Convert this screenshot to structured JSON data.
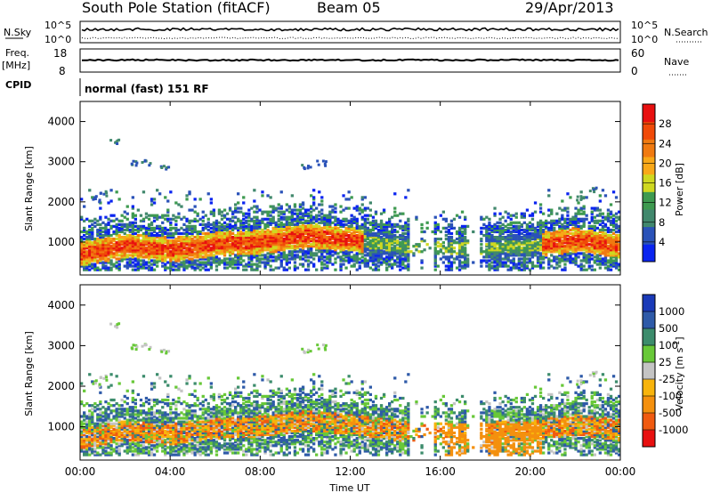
{
  "header": {
    "station": "South Pole Station (fitACF)",
    "beam": "Beam 05",
    "date": "29/Apr/2013"
  },
  "sky_panel": {
    "left_label": "N.Sky",
    "left_ticks": [
      "10^5",
      "10^0"
    ],
    "right_ticks": [
      "10^5",
      "10^0"
    ],
    "right_label": "N.Search"
  },
  "freq_panel": {
    "left_label_line1": "Freq.",
    "left_label_line2": "[MHz]",
    "left_ticks": [
      "18",
      "8"
    ],
    "right_ticks": [
      "60",
      "0"
    ],
    "right_label": "Nave"
  },
  "cpid_panel": {
    "label": "CPID",
    "mode_text": "normal (fast) 151 RF"
  },
  "x_axis": {
    "label": "Time UT",
    "ticks": [
      "00:00",
      "04:00",
      "08:00",
      "12:00",
      "16:00",
      "20:00",
      "00:00"
    ]
  },
  "colors": {
    "power": [
      "#0a24f0",
      "#2a52b8",
      "#41886d",
      "#3e9a50",
      "#cfd820",
      "#f8a818",
      "#f07a10",
      "#f04a08",
      "#e81010"
    ],
    "velocity": [
      "#e81010",
      "#f05a10",
      "#f4900e",
      "#f8b40c",
      "#c4c4c4",
      "#68c838",
      "#3c8c6c",
      "#2e5aa8",
      "#1a3ab8"
    ]
  },
  "chart_data": [
    {
      "type": "heatmap",
      "name": "power",
      "xlabel": "",
      "ylabel": "Slant Range [km]",
      "x_range_hours": [
        0,
        24
      ],
      "y_range_km": [
        180,
        4500
      ],
      "y_ticks": [
        "1000",
        "2000",
        "3000",
        "4000"
      ],
      "colorbar": {
        "label": "Power [dB]",
        "ticks": [
          "28",
          "24",
          "20",
          "16",
          "12",
          "8",
          "4"
        ],
        "range": [
          0,
          32
        ]
      },
      "approx_main_band_center_km_by_hour": [
        [
          0,
          700
        ],
        [
          2,
          900
        ],
        [
          4,
          800
        ],
        [
          6,
          950
        ],
        [
          8,
          1000
        ],
        [
          10,
          1150
        ],
        [
          12,
          1050
        ],
        [
          14,
          900
        ],
        [
          16,
          850
        ],
        [
          18,
          850
        ],
        [
          20,
          900
        ],
        [
          22,
          1050
        ],
        [
          24,
          900
        ]
      ]
    },
    {
      "type": "heatmap",
      "name": "velocity",
      "xlabel": "Time UT",
      "ylabel": "Slant Range [km]",
      "x_range_hours": [
        0,
        24
      ],
      "y_range_km": [
        180,
        4500
      ],
      "y_ticks": [
        "1000",
        "2000",
        "3000",
        "4000"
      ],
      "colorbar": {
        "label": "Velocity [m s^-1]",
        "label_main": "Velocity [m s",
        "label_exp": "-1",
        "label_end": "]",
        "ticks": [
          "1000",
          "500",
          "100",
          "25",
          "-25",
          "-100",
          "-500",
          "-1000"
        ],
        "range": [
          -1500,
          1500
        ]
      }
    }
  ]
}
